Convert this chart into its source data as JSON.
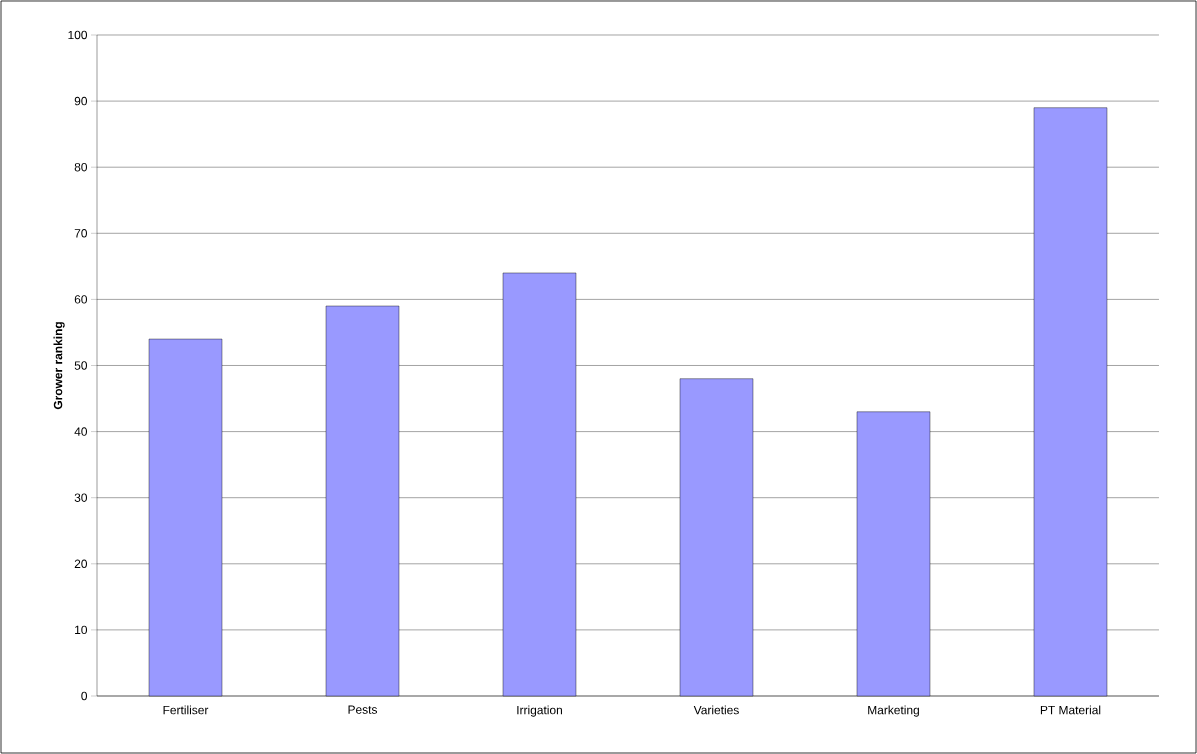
{
  "chart_data": {
    "type": "bar",
    "ylabel": "Grower ranking",
    "categories": [
      "Fertiliser",
      "Pests",
      "Irrigation",
      "Varieties",
      "Marketing",
      "PT Material"
    ],
    "values": [
      54,
      59,
      64,
      48,
      43,
      89
    ],
    "color": "#9999ff",
    "ylim": [
      0,
      100
    ],
    "yticks": [
      0,
      10,
      20,
      30,
      40,
      50,
      60,
      70,
      80,
      90,
      100
    ],
    "grid": "y"
  }
}
